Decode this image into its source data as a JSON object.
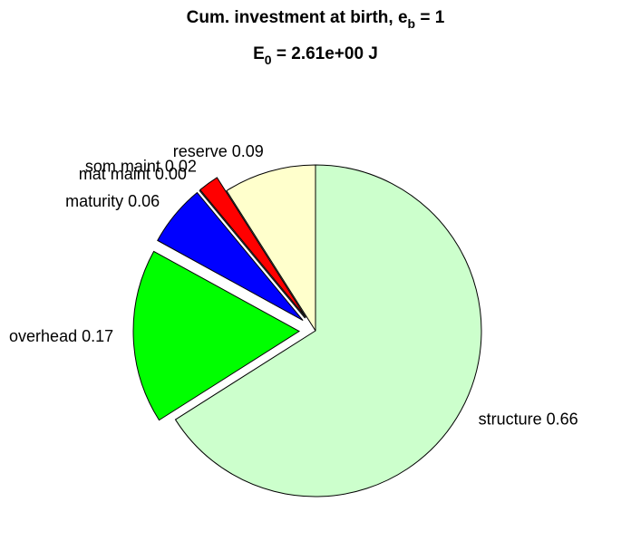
{
  "chart_data": {
    "type": "pie",
    "title": {
      "text": "Cum. investment at birth, e",
      "subscript": "b",
      "rest": " = 1"
    },
    "subtitle": {
      "text": "E",
      "subscript": "0",
      "rest": " = 2.61e+00 J"
    },
    "categories": [
      "reserve",
      "som maint",
      "mat maint",
      "maturity",
      "overhead",
      "structure"
    ],
    "values": [
      0.09,
      0.02,
      0.0,
      0.06,
      0.17,
      0.66
    ],
    "value_labels": [
      "0.09",
      "0.02",
      "0.00",
      "0.06",
      "0.17",
      "0.66"
    ],
    "colors": [
      "#ffffcc",
      "#ff0000",
      "#000000",
      "#0000ff",
      "#00ff00",
      "#ccffcc"
    ],
    "explode": [
      false,
      true,
      true,
      true,
      true,
      false
    ]
  }
}
